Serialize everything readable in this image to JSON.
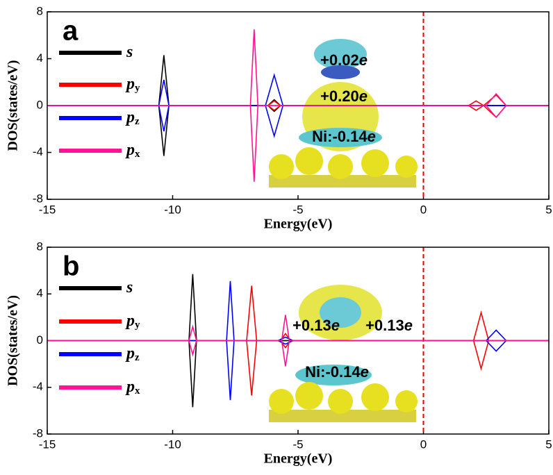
{
  "chart_data": [
    {
      "type": "line",
      "panel_label": "a",
      "xlabel": "Energy(eV)",
      "ylabel": "DOS(states/eV)",
      "xlim": [
        -15,
        5
      ],
      "ylim": [
        -8,
        8
      ],
      "xticks": [
        -15,
        -10,
        -5,
        0,
        5
      ],
      "yticks": [
        -8,
        -4,
        0,
        4,
        8
      ],
      "fermi_level": 0,
      "annotations": [
        "+0.02e",
        "+0.20e",
        "Ni:-0.14e"
      ],
      "series": [
        {
          "name": "s",
          "color": "#000000",
          "x": [
            -15,
            -10.55,
            -10.35,
            -10.15,
            -6.2,
            -5.95,
            -5.7,
            5
          ],
          "up": [
            0,
            0,
            4.3,
            0,
            0,
            0.5,
            0,
            0
          ],
          "down": [
            0,
            0,
            -4.3,
            0,
            0,
            -0.5,
            0,
            0
          ]
        },
        {
          "name": "py",
          "color": "#ff0000",
          "x": [
            -15,
            -6.2,
            -5.95,
            -5.7,
            1.8,
            2.1,
            2.4,
            2.9,
            3.3,
            5
          ],
          "up": [
            0,
            0,
            0.4,
            0,
            0,
            0.4,
            0,
            0.9,
            0,
            0
          ],
          "down": [
            0,
            0,
            -0.4,
            0,
            0,
            -0.4,
            0,
            -1,
            0,
            0
          ]
        },
        {
          "name": "pz",
          "color": "#0000ff",
          "x": [
            -15,
            -10.55,
            -10.35,
            -10.15,
            -6.3,
            -5.95,
            -5.6,
            5
          ],
          "up": [
            0,
            0,
            2.2,
            0,
            0,
            2.6,
            0,
            0
          ],
          "down": [
            0,
            0,
            -2.2,
            0,
            0,
            -2.6,
            0,
            0
          ]
        },
        {
          "name": "px",
          "color": "#ff1493",
          "x": [
            -15,
            -6.9,
            -6.75,
            -6.6,
            2.5,
            2.9,
            3.3,
            5
          ],
          "up": [
            0,
            0,
            6.5,
            0,
            0,
            1,
            0,
            0
          ],
          "down": [
            0,
            0,
            -6.5,
            0,
            0,
            -1,
            0,
            0
          ]
        }
      ]
    },
    {
      "type": "line",
      "panel_label": "b",
      "xlabel": "Energy(eV)",
      "ylabel": "DOS(states/eV)",
      "xlim": [
        -15,
        5
      ],
      "ylim": [
        -8,
        8
      ],
      "xticks": [
        -15,
        -10,
        -5,
        0,
        5
      ],
      "yticks": [
        -8,
        -4,
        0,
        4,
        8
      ],
      "fermi_level": 0,
      "annotations": [
        "+0.13e",
        "+0.13e",
        "Ni:-0.14e"
      ],
      "series": [
        {
          "name": "s",
          "color": "#000000",
          "x": [
            -15,
            -9.35,
            -9.2,
            -9.05,
            5
          ],
          "up": [
            0,
            0,
            5.7,
            0,
            0
          ],
          "down": [
            0,
            0,
            -5.7,
            0,
            0
          ]
        },
        {
          "name": "py",
          "color": "#ff0000",
          "x": [
            -15,
            -7.05,
            -6.85,
            -6.65,
            -5.7,
            -5.5,
            -5.3,
            2.0,
            2.3,
            2.6,
            5
          ],
          "up": [
            0,
            0,
            4.7,
            0,
            0,
            0.6,
            0,
            0,
            2.4,
            0,
            0
          ],
          "down": [
            0,
            0,
            -4.7,
            0,
            0,
            -0.6,
            0,
            0,
            -2.4,
            0,
            0
          ]
        },
        {
          "name": "pz",
          "color": "#0000ff",
          "x": [
            -15,
            -7.85,
            -7.7,
            -7.55,
            -5.8,
            -5.5,
            -5.2,
            2.5,
            2.9,
            3.3,
            5
          ],
          "up": [
            0,
            0,
            5.1,
            0,
            0,
            0.3,
            0,
            0,
            0.9,
            0,
            0
          ],
          "down": [
            0,
            0,
            -5.1,
            0,
            0,
            -0.3,
            0,
            0,
            -0.9,
            0,
            0
          ]
        },
        {
          "name": "px",
          "color": "#ff1493",
          "x": [
            -15,
            -9.35,
            -9.2,
            -9.05,
            -5.65,
            -5.5,
            -5.35,
            5
          ],
          "up": [
            0,
            0,
            1.2,
            0,
            0,
            2.2,
            0,
            0
          ],
          "down": [
            0,
            0,
            -1.2,
            0,
            0,
            -2.2,
            0,
            0
          ]
        }
      ]
    }
  ]
}
